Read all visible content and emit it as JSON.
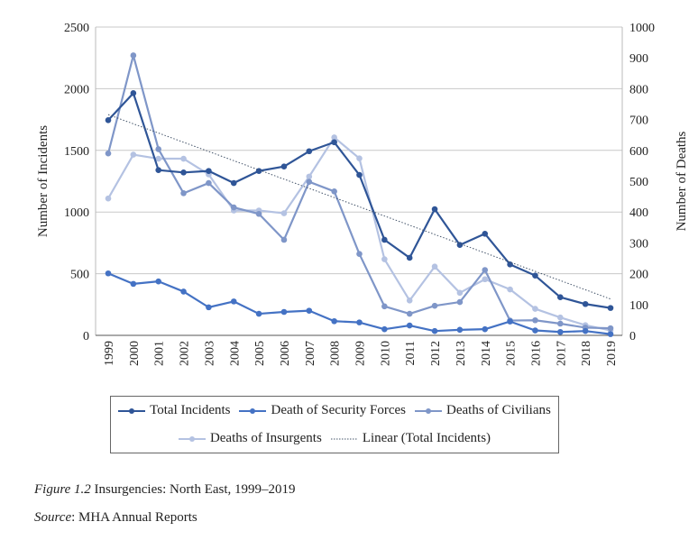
{
  "chart_data": {
    "type": "line",
    "x": [
      1999,
      2000,
      2001,
      2002,
      2003,
      2004,
      2005,
      2006,
      2007,
      2008,
      2009,
      2010,
      2011,
      2012,
      2013,
      2014,
      2015,
      2016,
      2017,
      2018,
      2019
    ],
    "ylabel": "Number of Incidents",
    "y2label": "Number of Deaths",
    "ylim": [
      0,
      2500
    ],
    "y2lim": [
      0,
      1000
    ],
    "yticks": [
      "0",
      "500",
      "1000",
      "1500",
      "2000",
      "2500"
    ],
    "y2ticks": [
      "0",
      "100",
      "200",
      "300",
      "400",
      "500",
      "600",
      "700",
      "800",
      "900",
      "1000"
    ],
    "grid": true,
    "legend_position": "bottom",
    "series": [
      {
        "name": "Total Incidents",
        "axis": "left",
        "color": "#2F5597",
        "values": [
          1745,
          1964,
          1340,
          1321,
          1333,
          1235,
          1333,
          1369,
          1493,
          1566,
          1301,
          775,
          629,
          1023,
          733,
          824,
          575,
          485,
          309,
          254,
          222
        ]
      },
      {
        "name": "Death of Security Forces",
        "axis": "right",
        "color": "#4472C4",
        "values": [
          201,
          167,
          175,
          142,
          91,
          110,
          70,
          76,
          80,
          46,
          42,
          20,
          32,
          14,
          18,
          20,
          45,
          16,
          11,
          14,
          4
        ]
      },
      {
        "name": "Deaths of Civilians",
        "axis": "right",
        "color": "#7F96C8",
        "values": [
          590,
          908,
          604,
          461,
          494,
          415,
          394,
          310,
          498,
          467,
          264,
          94,
          70,
          96,
          108,
          212,
          48,
          49,
          38,
          25,
          23
        ]
      },
      {
        "name": "Deaths of Insurgents",
        "axis": "right",
        "color": "#B4C2E2",
        "values": [
          444,
          586,
          573,
          573,
          522,
          405,
          405,
          396,
          515,
          642,
          574,
          247,
          113,
          223,
          138,
          182,
          149,
          86,
          58,
          33,
          16
        ]
      }
    ],
    "trendline": {
      "name": "Linear (Total Incidents)",
      "color": "#44546A",
      "start": 1790,
      "end": 295
    }
  },
  "caption": {
    "label": "Figure 1.2",
    "text": " Insurgencies: North East, 1999–2019"
  },
  "source": {
    "label": "Source",
    "text": ": MHA Annual Reports"
  }
}
